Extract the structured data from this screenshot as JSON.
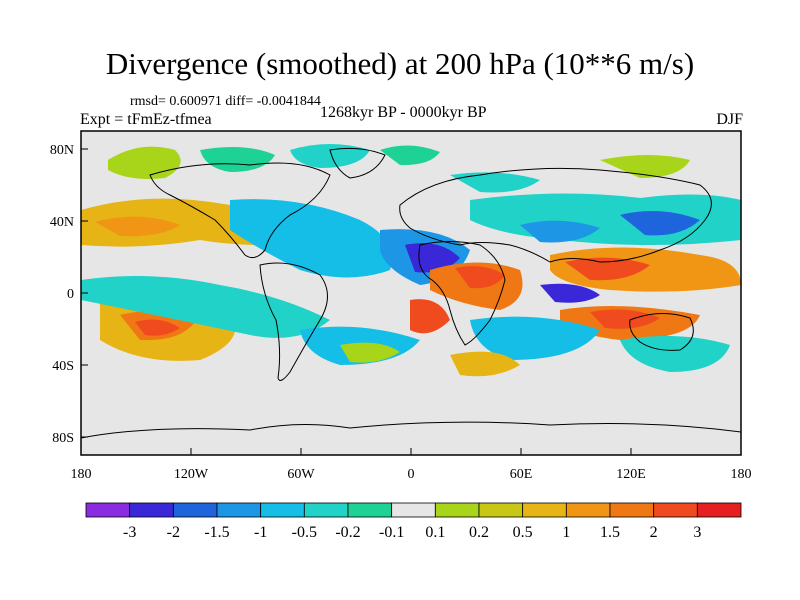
{
  "title": "Divergence (smoothed) at 200 hPa (10**6 m/s)",
  "stats": "rmsd= 0.600971  diff= -0.0041844",
  "experiment": "Expt = tFmEz-tfmea",
  "period": "1268kyr BP - 0000kyr BP",
  "season": "DJF",
  "axes": {
    "lon_ticks": [
      "180",
      "120W",
      "60W",
      "0",
      "60E",
      "120E",
      "180"
    ],
    "lat_ticks": [
      "80N",
      "40N",
      "0",
      "40S",
      "80S"
    ]
  },
  "colorbar": {
    "colors": [
      "#8a2be2",
      "#3a28d8",
      "#1e64dc",
      "#1e96e6",
      "#14bee6",
      "#20d2c8",
      "#1ed296",
      "#e6e6e6",
      "#a8d41a",
      "#c8c814",
      "#e6b414",
      "#f09614",
      "#f07814",
      "#f04b1e",
      "#e62020"
    ],
    "labels": [
      "-3",
      "-2",
      "-1.5",
      "-1",
      "-0.5",
      "-0.2",
      "-0.1",
      "0.1",
      "0.2",
      "0.5",
      "1",
      "1.5",
      "2",
      "3"
    ]
  }
}
